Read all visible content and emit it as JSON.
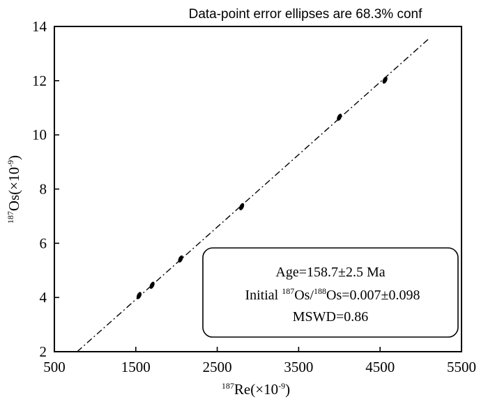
{
  "chart_data": {
    "type": "scatter",
    "title": "Data-point error ellipses are 68.3% conf",
    "xlabel_sup": "187",
    "xlabel_main": "Re(×10",
    "xlabel_exp": "-9",
    "xlabel_close": ")",
    "ylabel_sup": "187",
    "ylabel_main": "Os(×10",
    "ylabel_exp": "-9",
    "ylabel_close": ")",
    "xlim": [
      500,
      5500
    ],
    "ylim": [
      2,
      14
    ],
    "x_ticks": [
      500,
      1500,
      2500,
      3500,
      4500,
      5500
    ],
    "y_ticks": [
      2,
      4,
      6,
      8,
      10,
      12,
      14
    ],
    "grid": false,
    "points": [
      {
        "x": 1540,
        "y": 4.07
      },
      {
        "x": 1700,
        "y": 4.45
      },
      {
        "x": 2050,
        "y": 5.42
      },
      {
        "x": 2800,
        "y": 7.35
      },
      {
        "x": 4000,
        "y": 10.65
      },
      {
        "x": 4560,
        "y": 12.02
      }
    ],
    "isochron": {
      "x": [
        780,
        5100
      ],
      "y": [
        2.0,
        13.55
      ]
    },
    "annotation": {
      "line1": "Age=158.7±2.5 Ma",
      "line2_prefix": "Initial ",
      "line2_sup1": "187",
      "line2_mid": "Os/",
      "line2_sup2": "188",
      "line2_suffix": "Os=0.007±0.098",
      "line3": "MSWD=0.86"
    }
  }
}
